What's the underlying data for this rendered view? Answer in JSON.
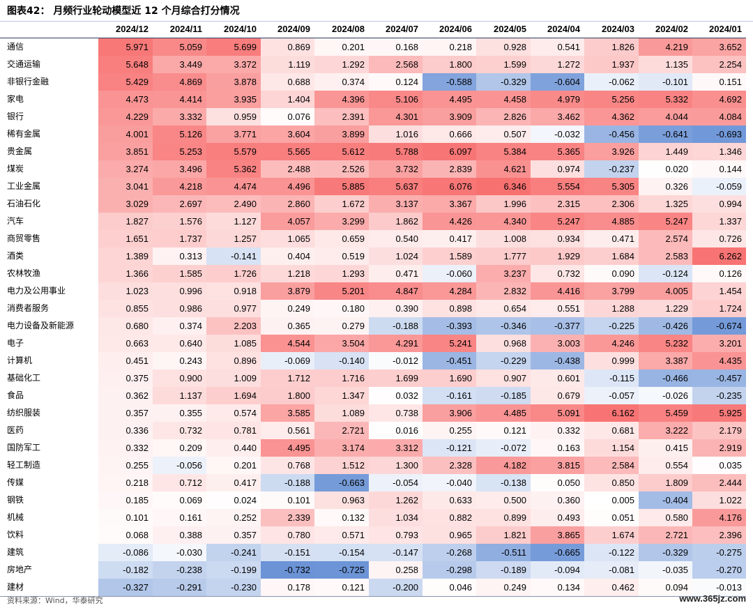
{
  "header": {
    "title": "图表42： 月频行业轮动模型近 12 个月综合打分情况"
  },
  "footer": {
    "source": "资料来源：Wind，华泰研究",
    "watermark": "www.365jz.com"
  },
  "colors": {
    "high": "#f87171",
    "mid": "#ffffff",
    "low": "#6b93d6"
  },
  "chart_data": {
    "type": "heatmap",
    "columns": [
      "2024/12",
      "2024/11",
      "2024/10",
      "2024/09",
      "2024/08",
      "2024/07",
      "2024/06",
      "2024/05",
      "2024/04",
      "2024/03",
      "2024/02",
      "2024/01"
    ],
    "rows": [
      {
        "name": "通信",
        "values": [
          "5.971",
          "5.059",
          "5.699",
          "0.869",
          "0.201",
          "0.168",
          "0.218",
          "0.928",
          "0.541",
          "1.826",
          "4.219",
          "3.652"
        ]
      },
      {
        "name": "交通运输",
        "values": [
          "5.648",
          "3.449",
          "3.372",
          "1.119",
          "1.292",
          "2.568",
          "1.800",
          "1.599",
          "1.272",
          "1.937",
          "1.135",
          "2.254"
        ]
      },
      {
        "name": "非银行金融",
        "values": [
          "5.429",
          "4.869",
          "3.878",
          "0.688",
          "0.374",
          "0.124",
          "-0.588",
          "-0.329",
          "-0.604",
          "-0.062",
          "-0.101",
          "0.151"
        ]
      },
      {
        "name": "家电",
        "values": [
          "4.473",
          "4.414",
          "3.935",
          "1.404",
          "4.396",
          "5.106",
          "4.495",
          "4.458",
          "4.979",
          "5.256",
          "5.332",
          "4.692"
        ]
      },
      {
        "name": "银行",
        "values": [
          "4.229",
          "3.332",
          "0.959",
          "0.076",
          "2.391",
          "4.301",
          "3.909",
          "2.826",
          "3.462",
          "4.362",
          "4.044",
          "4.084"
        ]
      },
      {
        "name": "稀有金属",
        "values": [
          "4.001",
          "5.126",
          "3.771",
          "3.604",
          "3.899",
          "1.016",
          "0.666",
          "0.507",
          "-0.032",
          "-0.456",
          "-0.641",
          "-0.693"
        ]
      },
      {
        "name": "贵金属",
        "values": [
          "3.851",
          "5.253",
          "5.579",
          "5.565",
          "5.612",
          "5.788",
          "6.097",
          "5.384",
          "5.365",
          "3.926",
          "1.449",
          "1.346"
        ]
      },
      {
        "name": "煤炭",
        "values": [
          "3.274",
          "3.496",
          "5.362",
          "2.488",
          "2.526",
          "3.732",
          "2.839",
          "4.621",
          "0.974",
          "-0.237",
          "0.020",
          "0.144"
        ]
      },
      {
        "name": "工业金属",
        "values": [
          "3.041",
          "4.218",
          "4.474",
          "4.496",
          "5.885",
          "5.637",
          "6.076",
          "6.346",
          "5.554",
          "5.305",
          "0.326",
          "-0.059"
        ]
      },
      {
        "name": "石油石化",
        "values": [
          "3.029",
          "2.697",
          "2.490",
          "2.860",
          "1.672",
          "3.137",
          "3.367",
          "1.996",
          "2.315",
          "2.306",
          "1.325",
          "0.994"
        ]
      },
      {
        "name": "汽车",
        "values": [
          "1.827",
          "1.576",
          "1.127",
          "4.057",
          "3.299",
          "1.862",
          "4.426",
          "4.340",
          "5.247",
          "4.885",
          "5.247",
          "1.337"
        ]
      },
      {
        "name": "商贸零售",
        "values": [
          "1.651",
          "1.737",
          "1.257",
          "1.065",
          "0.659",
          "0.540",
          "0.417",
          "1.008",
          "0.934",
          "0.471",
          "2.574",
          "0.726"
        ]
      },
      {
        "name": "酒类",
        "values": [
          "1.389",
          "0.313",
          "-0.141",
          "0.404",
          "0.519",
          "1.024",
          "1.589",
          "1.777",
          "1.929",
          "1.684",
          "2.583",
          "6.262"
        ]
      },
      {
        "name": "农林牧渔",
        "values": [
          "1.366",
          "1.585",
          "1.726",
          "1.218",
          "1.293",
          "0.471",
          "-0.060",
          "3.237",
          "0.732",
          "0.090",
          "-0.124",
          "0.126"
        ]
      },
      {
        "name": "电力及公用事业",
        "values": [
          "1.023",
          "0.996",
          "0.918",
          "3.879",
          "5.201",
          "4.847",
          "4.284",
          "2.832",
          "4.416",
          "3.799",
          "4.005",
          "1.454"
        ]
      },
      {
        "name": "消费者服务",
        "values": [
          "0.855",
          "0.986",
          "0.977",
          "0.249",
          "0.180",
          "0.390",
          "0.898",
          "0.654",
          "0.551",
          "1.288",
          "1.229",
          "1.724"
        ]
      },
      {
        "name": "电力设备及新能源",
        "values": [
          "0.680",
          "0.374",
          "2.203",
          "0.365",
          "0.279",
          "-0.188",
          "-0.393",
          "-0.346",
          "-0.377",
          "-0.225",
          "-0.426",
          "-0.674"
        ]
      },
      {
        "name": "电子",
        "values": [
          "0.663",
          "0.640",
          "1.085",
          "4.544",
          "3.504",
          "4.291",
          "5.241",
          "0.968",
          "3.003",
          "4.246",
          "5.232",
          "3.201"
        ]
      },
      {
        "name": "计算机",
        "values": [
          "0.451",
          "0.243",
          "0.896",
          "-0.069",
          "-0.140",
          "-0.012",
          "-0.451",
          "-0.229",
          "-0.438",
          "0.999",
          "3.387",
          "4.435"
        ]
      },
      {
        "name": "基础化工",
        "values": [
          "0.375",
          "0.900",
          "1.009",
          "1.712",
          "1.716",
          "1.699",
          "1.690",
          "0.907",
          "0.601",
          "-0.115",
          "-0.466",
          "-0.457"
        ]
      },
      {
        "name": "食品",
        "values": [
          "0.362",
          "1.137",
          "1.694",
          "1.800",
          "1.347",
          "0.032",
          "-0.161",
          "-0.185",
          "0.679",
          "-0.057",
          "-0.026",
          "-0.235"
        ]
      },
      {
        "name": "纺织服装",
        "values": [
          "0.357",
          "0.355",
          "0.574",
          "3.585",
          "1.089",
          "0.738",
          "3.906",
          "4.485",
          "5.091",
          "6.162",
          "5.459",
          "5.925"
        ]
      },
      {
        "name": "医药",
        "values": [
          "0.336",
          "0.732",
          "0.781",
          "0.561",
          "2.721",
          "0.016",
          "0.255",
          "0.121",
          "0.332",
          "0.681",
          "3.222",
          "2.179"
        ]
      },
      {
        "name": "国防军工",
        "values": [
          "0.332",
          "0.209",
          "0.440",
          "4.495",
          "3.174",
          "3.312",
          "-0.121",
          "-0.072",
          "0.163",
          "1.154",
          "0.415",
          "2.919"
        ]
      },
      {
        "name": "轻工制造",
        "values": [
          "0.255",
          "-0.056",
          "0.201",
          "0.768",
          "1.512",
          "1.300",
          "2.328",
          "4.182",
          "3.815",
          "2.584",
          "0.554",
          "0.035"
        ]
      },
      {
        "name": "传媒",
        "values": [
          "0.218",
          "0.712",
          "0.417",
          "-0.188",
          "-0.663",
          "-0.054",
          "-0.040",
          "-0.138",
          "0.050",
          "0.850",
          "1.809",
          "2.444"
        ]
      },
      {
        "name": "钢铁",
        "values": [
          "0.185",
          "0.069",
          "0.024",
          "0.101",
          "0.963",
          "1.262",
          "0.633",
          "0.500",
          "0.360",
          "0.005",
          "-0.404",
          "1.022"
        ]
      },
      {
        "name": "机械",
        "values": [
          "0.101",
          "0.161",
          "0.252",
          "2.339",
          "0.132",
          "1.034",
          "0.882",
          "0.899",
          "0.493",
          "0.051",
          "0.580",
          "4.176"
        ]
      },
      {
        "name": "饮料",
        "values": [
          "0.068",
          "0.388",
          "0.357",
          "0.780",
          "0.571",
          "0.793",
          "0.965",
          "1.821",
          "3.865",
          "1.674",
          "2.721",
          "2.396"
        ]
      },
      {
        "name": "建筑",
        "values": [
          "-0.086",
          "-0.030",
          "-0.241",
          "-0.151",
          "-0.154",
          "-0.147",
          "-0.268",
          "-0.511",
          "-0.665",
          "-0.122",
          "-0.329",
          "-0.275"
        ]
      },
      {
        "name": "房地产",
        "values": [
          "-0.182",
          "-0.238",
          "-0.199",
          "-0.732",
          "-0.725",
          "0.258",
          "-0.298",
          "-0.189",
          "-0.094",
          "-0.081",
          "-0.035",
          "-0.270"
        ]
      },
      {
        "name": "建材",
        "values": [
          "-0.327",
          "-0.291",
          "-0.230",
          "0.178",
          "0.121",
          "-0.200",
          "0.046",
          "0.249",
          "0.134",
          "0.462",
          "0.094",
          "-0.013"
        ]
      }
    ]
  }
}
